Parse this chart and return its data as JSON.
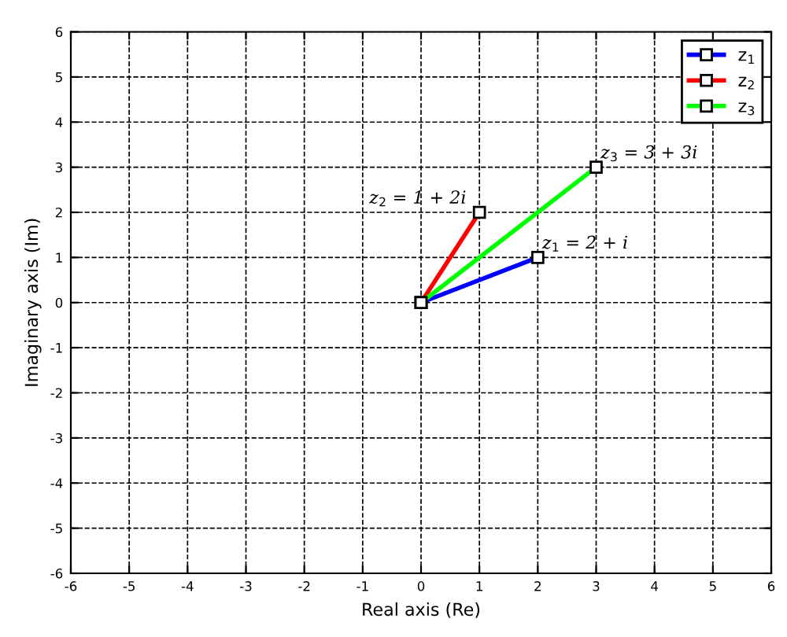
{
  "chart_data": {
    "type": "line",
    "xlabel": "Real axis (Re)",
    "ylabel": "Imaginary axis (Im)",
    "series": [
      {
        "name": "z$_{1}$",
        "color": "#0000ff",
        "x": [
          0,
          2
        ],
        "values": [
          0,
          1
        ]
      },
      {
        "name": "z$_{2}$",
        "color": "#ff0000",
        "x": [
          0,
          1
        ],
        "values": [
          0,
          2
        ]
      },
      {
        "name": "z$_{3}$",
        "color": "#00ff00",
        "x": [
          0,
          3
        ],
        "values": [
          0,
          3
        ]
      }
    ],
    "annotations": [
      {
        "text": "z$_{1}$ = 2 + i",
        "x": 2,
        "y": 1
      },
      {
        "text": "z$_{2}$ = 1 + 2i",
        "x": 1,
        "y": 2
      },
      {
        "text": "z$_{3}$ = 3 + 3i",
        "x": 3,
        "y": 3
      }
    ],
    "xlim": [
      -6,
      6
    ],
    "ylim": [
      -6,
      6
    ],
    "xticks": [
      -6,
      -5,
      -4,
      -3,
      -2,
      -1,
      0,
      1,
      2,
      3,
      4,
      5,
      6
    ],
    "yticks": [
      -6,
      -5,
      -4,
      -3,
      -2,
      -1,
      0,
      1,
      2,
      3,
      4,
      5,
      6
    ],
    "grid": true,
    "legend": "top right",
    "marker": "square",
    "line_style": "solid"
  }
}
